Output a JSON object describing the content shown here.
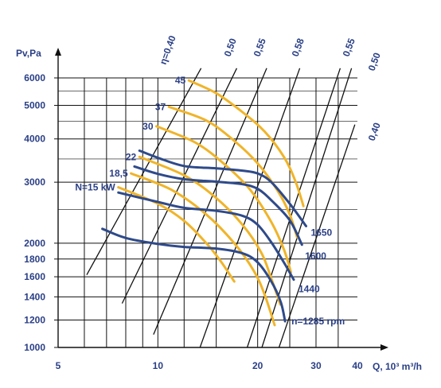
{
  "chart_data": {
    "type": "line",
    "title": "",
    "xlabel": "Q, 10³ m³/h",
    "ylabel": "Pv,Pa",
    "x_scale": "log",
    "y_scale": "log",
    "xlim": [
      5,
      40
    ],
    "ylim": [
      1000,
      6000
    ],
    "x_ticks": [
      5,
      10,
      20,
      30,
      40
    ],
    "y_ticks": [
      1000,
      1200,
      1400,
      1600,
      1800,
      2000,
      3000,
      4000,
      5000,
      6000
    ],
    "grid": true,
    "colors": {
      "rpm": "#2e4a8a",
      "power": "#f0b429",
      "efficiency": "#111111",
      "text": "#2a3f86"
    },
    "rpm_series": [
      {
        "name": "1650",
        "points": [
          [
            8.8,
            3700
          ],
          [
            10,
            3530
          ],
          [
            12,
            3340
          ],
          [
            15,
            3290
          ],
          [
            18,
            3240
          ],
          [
            20,
            3180
          ],
          [
            22,
            3000
          ],
          [
            25,
            2600
          ],
          [
            28,
            2240
          ]
        ]
      },
      {
        "name": "1600",
        "points": [
          [
            8.5,
            3330
          ],
          [
            10,
            3170
          ],
          [
            12,
            3060
          ],
          [
            15,
            3010
          ],
          [
            18,
            2960
          ],
          [
            20,
            2870
          ],
          [
            22,
            2660
          ],
          [
            25,
            2330
          ],
          [
            27.2,
            1980
          ]
        ]
      },
      {
        "name": "1440",
        "points": [
          [
            7.6,
            2800
          ],
          [
            10,
            2630
          ],
          [
            12,
            2530
          ],
          [
            15,
            2480
          ],
          [
            18,
            2400
          ],
          [
            20,
            2260
          ],
          [
            22,
            2010
          ],
          [
            24,
            1760
          ],
          [
            25.7,
            1570
          ]
        ]
      },
      {
        "name": "n=1285 rpm",
        "points": [
          [
            6.8,
            2200
          ],
          [
            8,
            2070
          ],
          [
            10,
            1990
          ],
          [
            12,
            1950
          ],
          [
            15,
            1930
          ],
          [
            18,
            1870
          ],
          [
            20,
            1760
          ],
          [
            22,
            1550
          ],
          [
            23.5,
            1350
          ],
          [
            24.2,
            1190
          ]
        ]
      }
    ],
    "power_series": [
      {
        "name": "45",
        "points": [
          [
            12.4,
            5900
          ],
          [
            15,
            5420
          ],
          [
            18,
            4780
          ],
          [
            21,
            4200
          ],
          [
            24,
            3550
          ],
          [
            26,
            3020
          ],
          [
            27.5,
            2560
          ]
        ]
      },
      {
        "name": "37",
        "points": [
          [
            10.8,
            4950
          ],
          [
            14,
            4520
          ],
          [
            17,
            3950
          ],
          [
            20,
            3400
          ],
          [
            23,
            2830
          ],
          [
            25,
            2420
          ],
          [
            26.3,
            2080
          ]
        ]
      },
      {
        "name": "30",
        "points": [
          [
            9.9,
            4350
          ],
          [
            13,
            3900
          ],
          [
            16,
            3360
          ],
          [
            19,
            2850
          ],
          [
            22,
            2300
          ],
          [
            24,
            1920
          ],
          [
            25.2,
            1650
          ]
        ]
      },
      {
        "name": "22",
        "points": [
          [
            8.8,
            3550
          ],
          [
            12,
            3140
          ],
          [
            15,
            2700
          ],
          [
            18,
            2260
          ],
          [
            20.5,
            1880
          ],
          [
            22,
            1580
          ],
          [
            23.4,
            1330
          ]
        ]
      },
      {
        "name": "18,5",
        "points": [
          [
            8.3,
            3180
          ],
          [
            11,
            2850
          ],
          [
            14,
            2420
          ],
          [
            17,
            2000
          ],
          [
            19.5,
            1660
          ],
          [
            21,
            1420
          ],
          [
            22.5,
            1160
          ]
        ]
      },
      {
        "name": "N=15 kW",
        "points": [
          [
            7.6,
            2900
          ],
          [
            10,
            2600
          ],
          [
            12,
            2320
          ],
          [
            14,
            2000
          ],
          [
            15.5,
            1770
          ],
          [
            17,
            1550
          ]
        ]
      }
    ],
    "efficiency_lines": [
      {
        "name": "η=0,40",
        "points": [
          [
            6.1,
            1620
          ],
          [
            13.5,
            6400
          ]
        ]
      },
      {
        "name": "0,50",
        "points": [
          [
            7.8,
            1340
          ],
          [
            17.3,
            6400
          ]
        ]
      },
      {
        "name": "0,55",
        "points": [
          [
            9.7,
            1090
          ],
          [
            21.3,
            6400
          ]
        ]
      },
      {
        "name": "0,58",
        "points": [
          [
            13.4,
            1000
          ],
          [
            26.8,
            6400
          ]
        ]
      },
      {
        "name": "0,55",
        "points": [
          [
            18.6,
            1000
          ],
          [
            35.5,
            6400
          ]
        ]
      },
      {
        "name": "0,50",
        "points": [
          [
            20.6,
            1000
          ],
          [
            38.4,
            6400
          ]
        ]
      },
      {
        "name": "0,40",
        "points": [
          [
            23.2,
            1000
          ],
          [
            39.3,
            4400
          ]
        ]
      }
    ]
  }
}
